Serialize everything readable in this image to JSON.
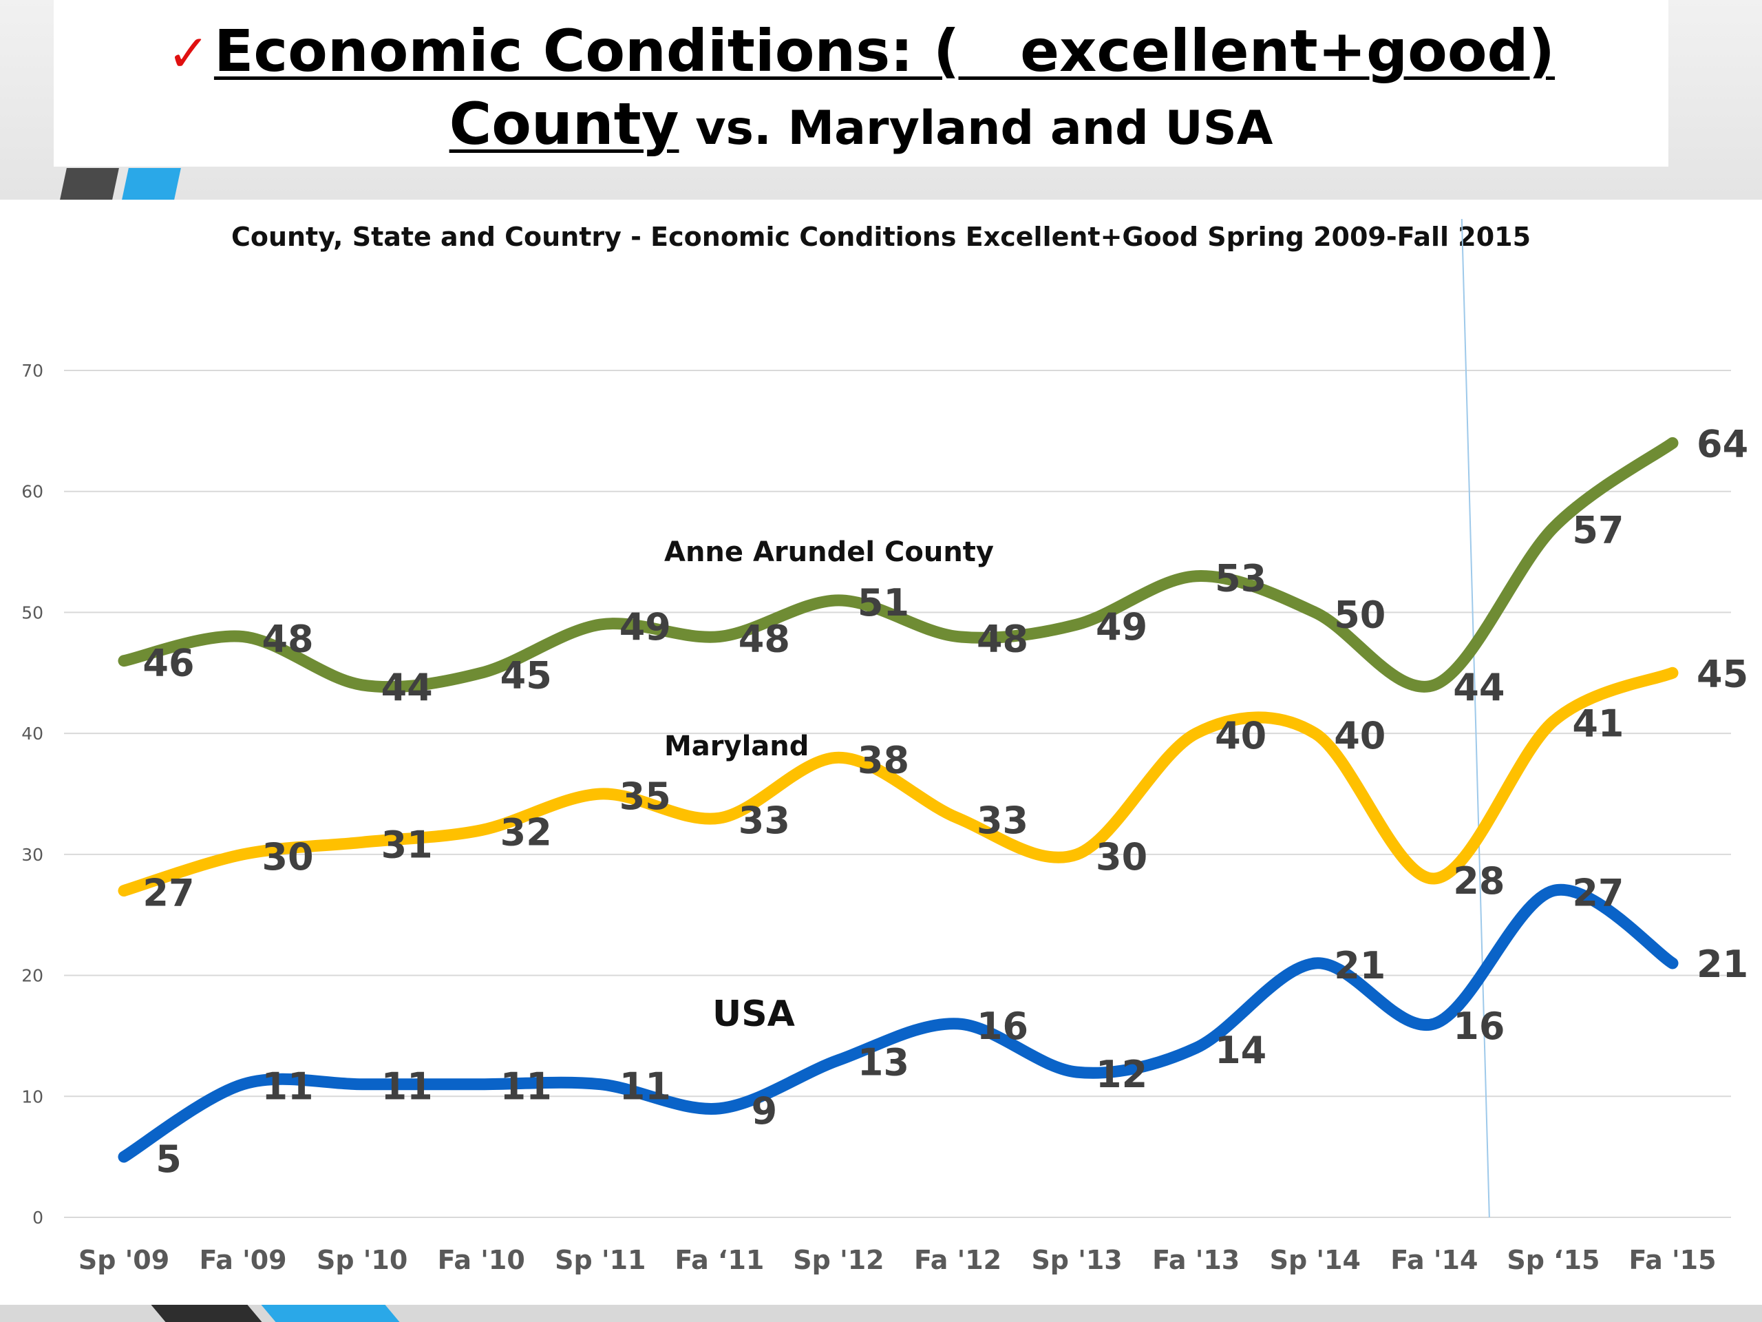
{
  "slide": {
    "check": "✓",
    "title_line1": "Economic Conditions: (   excellent+good)",
    "title_line2_a": "County",
    "title_line2_b": " vs. Maryland and USA"
  },
  "colors": {
    "county": "#6f8c34",
    "maryland": "#ffc000",
    "usa": "#0a63c8",
    "grid": "#d9d9d9",
    "marker_line": "#9ec9ea"
  },
  "chart_data": {
    "type": "line",
    "title": "County, State and Country - Economic Conditions Excellent+Good Spring 2009-Fall 2015",
    "categories": [
      "Sp '09",
      "Fa '09",
      "Sp '10",
      "Fa '10",
      "Sp '11",
      "Fa ‘11",
      "Sp '12",
      "Fa '12",
      "Sp '13",
      "Fa '13",
      "Sp '14",
      "Fa '14",
      "Sp ‘15",
      "Fa '15"
    ],
    "ylim": [
      0,
      70
    ],
    "yticks": [
      0,
      10,
      20,
      30,
      40,
      50,
      60,
      70
    ],
    "grid": true,
    "smooth": true,
    "vertical_marker_category": "Fa '14",
    "series": [
      {
        "name": "Anne Arundel County",
        "color_key": "county",
        "values": [
          46,
          48,
          44,
          45,
          49,
          48,
          51,
          48,
          49,
          53,
          50,
          44,
          57,
          64
        ]
      },
      {
        "name": "Maryland",
        "color_key": "maryland",
        "values": [
          27,
          30,
          31,
          32,
          35,
          33,
          38,
          33,
          30,
          40,
          40,
          28,
          41,
          45
        ]
      },
      {
        "name": "USA",
        "color_key": "usa",
        "values": [
          5,
          11,
          11,
          11,
          11,
          9,
          13,
          16,
          12,
          14,
          21,
          16,
          27,
          21
        ]
      }
    ]
  }
}
